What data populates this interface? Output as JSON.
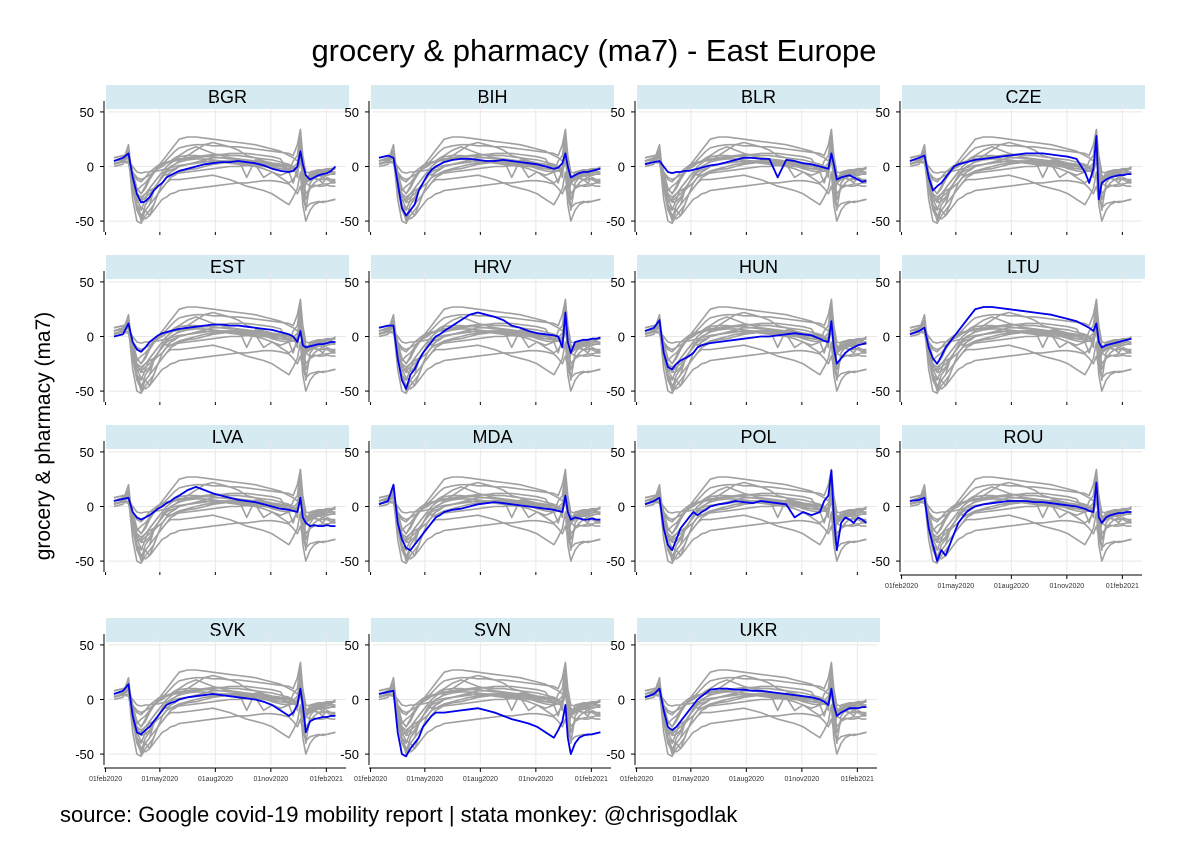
{
  "figure": {
    "title": "grocery & pharmacy (ma7) - East Europe",
    "ytitle": "grocery & pharmacy (ma7)",
    "source": "source: Google covid-19 mobility report | stata monkey: @chrisgodlak"
  },
  "colors": {
    "highlight": "#0000ee",
    "background_series": "#a0a0a0",
    "strip": "#d6eaf1",
    "grid": "#e8e8e8"
  },
  "chart_data": {
    "type": "line",
    "layout": "small multiples, 4 columns",
    "x_ticks": [
      "01feb2020",
      "01may2020",
      "01aug2020",
      "01nov2020",
      "01feb2021"
    ],
    "x_range": [
      "2020-02-15",
      "2021-02-17"
    ],
    "y_ticks": [
      50,
      0,
      -50
    ],
    "ylim": [
      -60,
      60
    ],
    "grid": true,
    "note": "each panel highlights one country in blue; all 15 countries drawn in gray",
    "x": [
      "2020-02-15",
      "2020-03-01",
      "2020-03-10",
      "2020-03-17",
      "2020-03-24",
      "2020-03-31",
      "2020-04-07",
      "2020-04-14",
      "2020-04-21",
      "2020-04-28",
      "2020-05-05",
      "2020-05-12",
      "2020-05-19",
      "2020-05-26",
      "2020-06-02",
      "2020-06-16",
      "2020-06-30",
      "2020-07-14",
      "2020-07-28",
      "2020-08-11",
      "2020-08-25",
      "2020-09-08",
      "2020-09-22",
      "2020-10-06",
      "2020-10-20",
      "2020-11-03",
      "2020-11-17",
      "2020-12-01",
      "2020-12-08",
      "2020-12-15",
      "2020-12-20",
      "2020-12-24",
      "2020-12-29",
      "2021-01-05",
      "2021-01-12",
      "2021-01-19",
      "2021-01-26",
      "2021-02-02",
      "2021-02-09",
      "2021-02-16"
    ],
    "series": [
      {
        "name": "BGR",
        "values": [
          5,
          8,
          12,
          -10,
          -25,
          -33,
          -32,
          -28,
          -22,
          -18,
          -15,
          -10,
          -8,
          -6,
          -4,
          -2,
          0,
          2,
          3,
          4,
          4,
          5,
          4,
          3,
          1,
          -2,
          -4,
          -5,
          -4,
          0,
          14,
          2,
          -8,
          -12,
          -10,
          -8,
          -7,
          -6,
          -4,
          0
        ]
      },
      {
        "name": "BIH",
        "values": [
          8,
          10,
          8,
          -15,
          -38,
          -45,
          -40,
          -35,
          -22,
          -15,
          -8,
          -3,
          0,
          2,
          4,
          6,
          7,
          7,
          6,
          5,
          5,
          6,
          5,
          4,
          3,
          2,
          0,
          -2,
          -1,
          3,
          12,
          0,
          -10,
          -8,
          -6,
          -5,
          -5,
          -4,
          -3,
          -2
        ]
      },
      {
        "name": "BLR",
        "values": [
          2,
          4,
          5,
          0,
          -5,
          -6,
          -5,
          -5,
          -4,
          -4,
          -3,
          -2,
          -1,
          0,
          1,
          2,
          4,
          6,
          8,
          8,
          7,
          7,
          -10,
          6,
          5,
          3,
          2,
          0,
          -1,
          -2,
          12,
          2,
          -12,
          -10,
          -9,
          -8,
          -10,
          -12,
          -14,
          -13
        ]
      },
      {
        "name": "CZE",
        "values": [
          5,
          8,
          10,
          -10,
          -22,
          -18,
          -15,
          -10,
          -5,
          0,
          2,
          3,
          4,
          5,
          6,
          7,
          8,
          9,
          10,
          11,
          12,
          12,
          12,
          11,
          10,
          9,
          7,
          -5,
          -15,
          -2,
          28,
          -30,
          -15,
          -12,
          -10,
          -9,
          -8,
          -8,
          -7,
          -7
        ]
      },
      {
        "name": "EST",
        "values": [
          0,
          2,
          12,
          -5,
          -12,
          -14,
          -10,
          -5,
          -2,
          1,
          3,
          4,
          5,
          6,
          7,
          8,
          9,
          10,
          11,
          11,
          10,
          10,
          9,
          8,
          7,
          6,
          4,
          2,
          0,
          -5,
          5,
          -8,
          -10,
          -9,
          -8,
          -7,
          -7,
          -6,
          -5,
          -5
        ]
      },
      {
        "name": "HRV",
        "values": [
          8,
          10,
          10,
          -20,
          -40,
          -48,
          -35,
          -30,
          -22,
          -15,
          -10,
          -5,
          0,
          2,
          5,
          10,
          15,
          20,
          22,
          20,
          18,
          15,
          10,
          8,
          5,
          3,
          2,
          1,
          0,
          -10,
          22,
          -5,
          -15,
          -5,
          -4,
          -3,
          -3,
          -2,
          -2,
          -1
        ]
      },
      {
        "name": "HUN",
        "values": [
          5,
          8,
          15,
          -15,
          -28,
          -30,
          -25,
          -22,
          -20,
          -18,
          -15,
          -10,
          -8,
          -7,
          -6,
          -5,
          -4,
          -3,
          -2,
          -1,
          0,
          0,
          1,
          2,
          3,
          2,
          1,
          -2,
          -4,
          -5,
          14,
          -10,
          -25,
          -20,
          -15,
          -12,
          -10,
          -8,
          -7,
          -6
        ]
      },
      {
        "name": "LTU",
        "values": [
          2,
          5,
          8,
          -10,
          -20,
          -25,
          -18,
          -10,
          -5,
          0,
          5,
          10,
          15,
          20,
          25,
          27,
          27,
          26,
          25,
          24,
          23,
          22,
          21,
          20,
          18,
          16,
          14,
          10,
          8,
          5,
          12,
          -5,
          -10,
          -8,
          -7,
          -6,
          -5,
          -4,
          -3,
          -2
        ]
      },
      {
        "name": "LVA",
        "values": [
          5,
          7,
          8,
          -5,
          -10,
          -12,
          -10,
          -8,
          -5,
          -2,
          0,
          3,
          5,
          8,
          10,
          15,
          18,
          15,
          12,
          10,
          8,
          6,
          5,
          4,
          2,
          0,
          -2,
          -3,
          -4,
          -5,
          8,
          -10,
          -15,
          -18,
          -17,
          -18,
          -18,
          -17,
          -18,
          -18
        ]
      },
      {
        "name": "MDA",
        "values": [
          2,
          5,
          20,
          -15,
          -30,
          -38,
          -40,
          -35,
          -30,
          -25,
          -20,
          -15,
          -10,
          -8,
          -5,
          -3,
          -2,
          0,
          2,
          3,
          4,
          3,
          2,
          1,
          0,
          -1,
          -2,
          -3,
          -4,
          -5,
          10,
          -5,
          -12,
          -10,
          -11,
          -12,
          -12,
          -11,
          -12,
          -12
        ]
      },
      {
        "name": "POL",
        "values": [
          2,
          5,
          8,
          -20,
          -35,
          -40,
          -30,
          -20,
          -15,
          -10,
          -5,
          -8,
          -5,
          -3,
          0,
          2,
          3,
          5,
          4,
          3,
          5,
          4,
          3,
          2,
          -10,
          -5,
          -8,
          -5,
          5,
          10,
          33,
          -10,
          -40,
          -15,
          -10,
          -12,
          -15,
          -10,
          -12,
          -15
        ]
      },
      {
        "name": "ROU",
        "values": [
          5,
          6,
          8,
          -20,
          -35,
          -50,
          -40,
          -45,
          -35,
          -25,
          -15,
          -10,
          -5,
          -2,
          0,
          2,
          3,
          4,
          5,
          5,
          5,
          4,
          4,
          3,
          2,
          1,
          0,
          -2,
          -4,
          -5,
          22,
          -10,
          -15,
          -10,
          -8,
          -7,
          -6,
          -6,
          -5,
          -5
        ]
      },
      {
        "name": "SVK",
        "values": [
          5,
          8,
          14,
          -15,
          -30,
          -32,
          -28,
          -25,
          -20,
          -15,
          -10,
          -5,
          -3,
          -2,
          0,
          2,
          3,
          4,
          5,
          4,
          3,
          2,
          1,
          0,
          -2,
          -5,
          -10,
          -15,
          -12,
          -5,
          10,
          -5,
          -30,
          -20,
          -18,
          -17,
          -16,
          -16,
          -15,
          -15
        ]
      },
      {
        "name": "SVN",
        "values": [
          5,
          7,
          8,
          -30,
          -50,
          -52,
          -45,
          -40,
          -35,
          -25,
          -20,
          -15,
          -12,
          -12,
          -12,
          -11,
          -10,
          -9,
          -8,
          -10,
          -12,
          -15,
          -18,
          -20,
          -22,
          -25,
          -30,
          -35,
          -28,
          -20,
          -5,
          -35,
          -50,
          -40,
          -35,
          -33,
          -32,
          -32,
          -31,
          -30
        ]
      },
      {
        "name": "UKR",
        "values": [
          2,
          5,
          10,
          -10,
          -25,
          -28,
          -25,
          -20,
          -15,
          -10,
          -5,
          0,
          3,
          6,
          9,
          10,
          10,
          9,
          9,
          8,
          8,
          7,
          6,
          5,
          4,
          3,
          2,
          0,
          -2,
          -5,
          10,
          -5,
          -15,
          -12,
          -10,
          -8,
          -8,
          -8,
          -7,
          -7
        ]
      }
    ],
    "gray_extra": [
      {
        "values": [
          3,
          4,
          3,
          -15,
          -35,
          -45,
          -48,
          -45,
          -40,
          -35,
          -30,
          -28,
          -25,
          -24,
          -22,
          -21,
          -20,
          -19,
          -18,
          -17,
          -16,
          -15,
          -15,
          -14,
          -13,
          -13,
          -14,
          -16,
          -20,
          -25,
          -18,
          -28,
          -38,
          -34,
          -33,
          -32,
          -33,
          -32,
          -31,
          -30
        ]
      },
      {
        "values": [
          8,
          10,
          10,
          -5,
          -20,
          -25,
          -20,
          -12,
          -6,
          -2,
          2,
          6,
          10,
          14,
          17,
          19,
          20,
          20,
          19,
          19,
          18,
          18,
          17,
          16,
          15,
          14,
          13,
          12,
          10,
          20,
          34,
          10,
          -5,
          -6,
          -5,
          -4,
          -4,
          -3,
          -3,
          -2
        ]
      }
    ],
    "panels": [
      "BGR",
      "BIH",
      "BLR",
      "CZE",
      "EST",
      "HRV",
      "HUN",
      "LTU",
      "LVA",
      "MDA",
      "POL",
      "ROU",
      "SVK",
      "SVN",
      "UKR"
    ],
    "panels_with_x_axis": [
      "ROU",
      "SVK",
      "SVN",
      "UKR"
    ]
  }
}
